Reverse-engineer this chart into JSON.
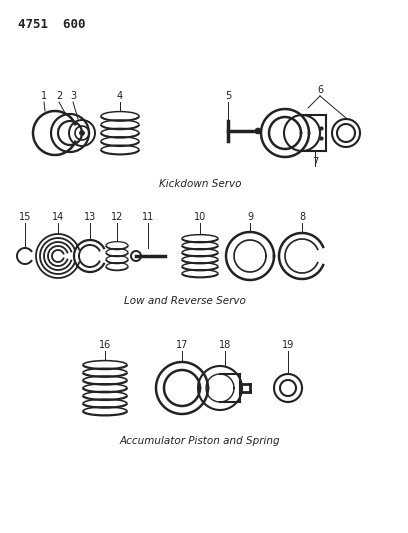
{
  "title_code": "4751  600",
  "bg_color": "#ffffff",
  "section1_label": "Kickdown Servo",
  "section2_label": "Low and Reverse Servo",
  "section3_label": "Accumulator Piston and Spring",
  "font_color": "#1a1a1a",
  "label_fontsize": 7.5,
  "code_fontsize": 9,
  "number_fontsize": 7,
  "dark": "#222222"
}
